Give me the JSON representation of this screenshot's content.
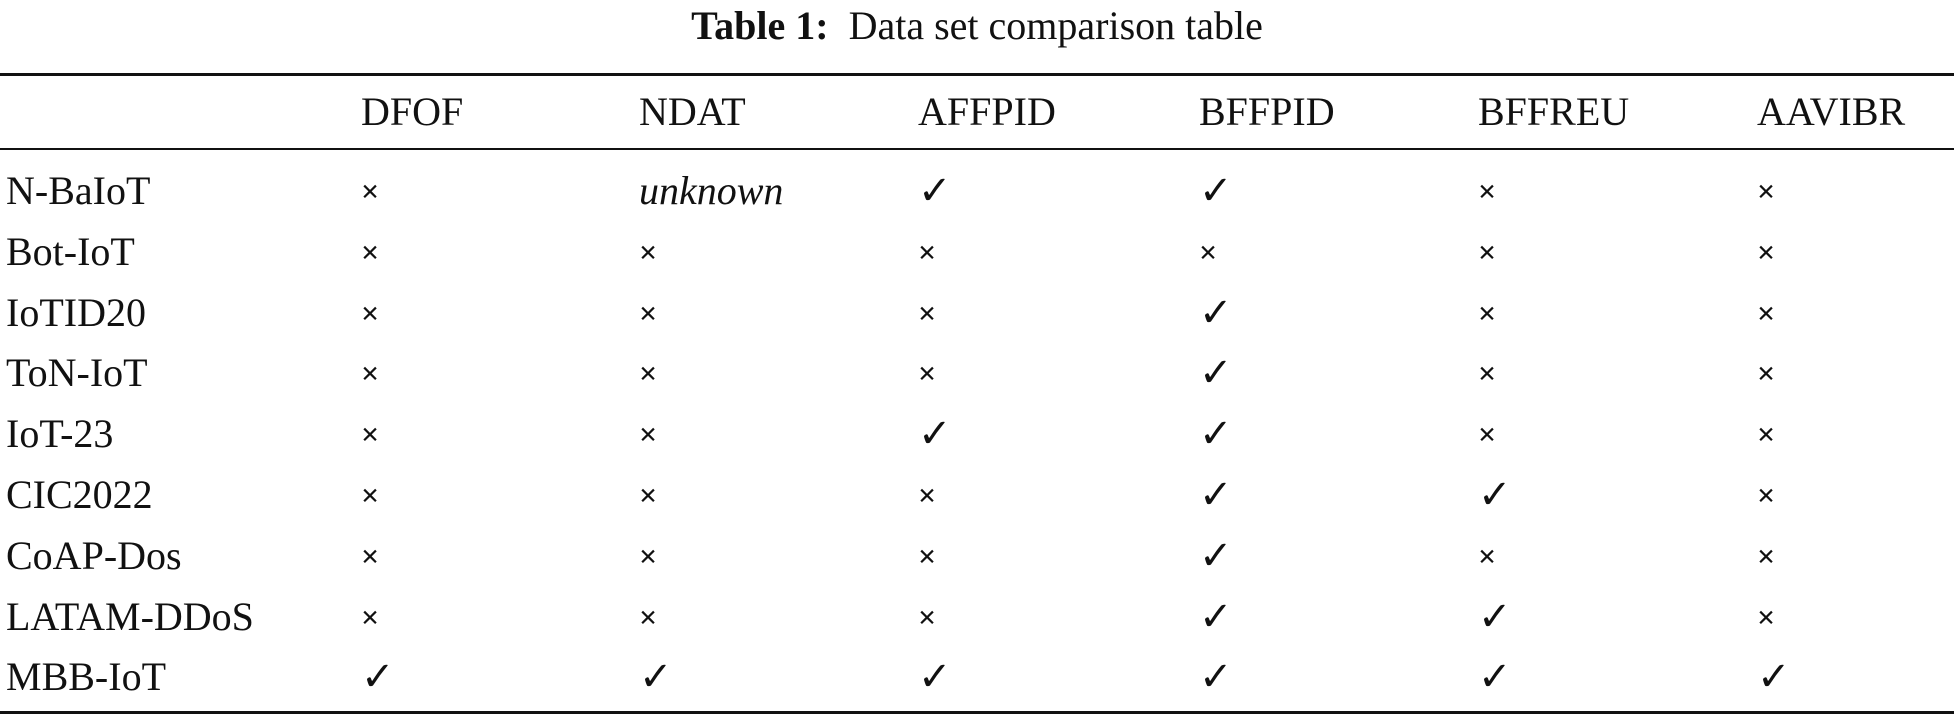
{
  "caption": {
    "label": "Table 1:",
    "text": "Data set comparison table"
  },
  "table": {
    "columns": [
      "DFOF",
      "NDAT",
      "AFFPID",
      "BFFPID",
      "BFFREU",
      "AAVIBR"
    ],
    "rows": [
      {
        "name": "N-BaIoT",
        "cells": [
          "×",
          {
            "text": "unknown",
            "italic": true
          },
          "✓",
          "✓",
          "×",
          "×"
        ]
      },
      {
        "name": "Bot-IoT",
        "cells": [
          "×",
          "×",
          "×",
          "×",
          "×",
          "×"
        ]
      },
      {
        "name": "IoTID20",
        "cells": [
          "×",
          "×",
          "×",
          "✓",
          "×",
          "×"
        ]
      },
      {
        "name": "ToN-IoT",
        "cells": [
          "×",
          "×",
          "×",
          "✓",
          "×",
          "×"
        ]
      },
      {
        "name": "IoT-23",
        "cells": [
          "×",
          "×",
          "✓",
          "✓",
          "×",
          "×"
        ]
      },
      {
        "name": "CIC2022",
        "cells": [
          "×",
          "×",
          "×",
          "✓",
          "✓",
          "×"
        ]
      },
      {
        "name": "CoAP-Dos",
        "cells": [
          "×",
          "×",
          "×",
          "✓",
          "×",
          "×"
        ]
      },
      {
        "name": "LATAM-DDoS",
        "cells": [
          "×",
          "×",
          "×",
          "✓",
          "✓",
          "×"
        ]
      },
      {
        "name": "MBB-IoT",
        "cells": [
          "✓",
          "✓",
          "✓",
          "✓",
          "✓",
          "✓"
        ]
      }
    ]
  }
}
